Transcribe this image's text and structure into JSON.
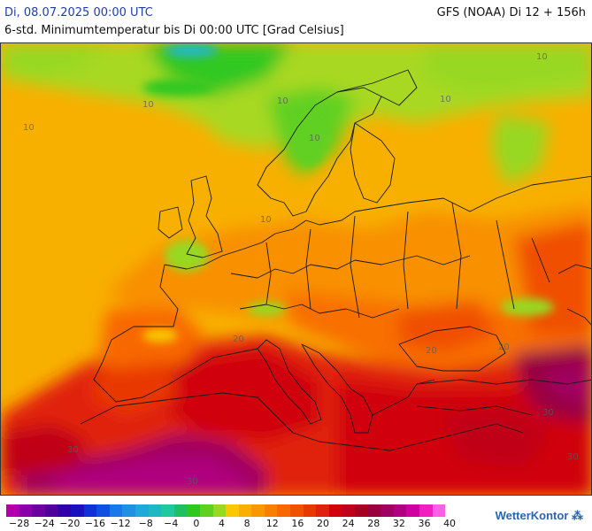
{
  "header": {
    "date_title": "Di, 08.07.2025 00:00 UTC",
    "subtitle": "6-std. Minimumtemperatur bis Di 00:00 UTC [Grad Celsius]",
    "model_run": "GFS (NOAA) Di 12 + 156h"
  },
  "legend": {
    "colors": [
      "#b000b0",
      "#8a00a8",
      "#6a00a0",
      "#50009a",
      "#3000a8",
      "#1a10c0",
      "#1030d8",
      "#1050e0",
      "#1878e8",
      "#2090e0",
      "#20a8d8",
      "#20b8c0",
      "#20c8a0",
      "#20c060",
      "#30c820",
      "#60d020",
      "#98d820",
      "#f8c800",
      "#f8b000",
      "#f89800",
      "#f88000",
      "#f86800",
      "#f05000",
      "#e83800",
      "#e02010",
      "#d00010",
      "#c00018",
      "#a80020",
      "#980040",
      "#a00060",
      "#b00080",
      "#d000a0",
      "#f020c0",
      "#f860e8"
    ],
    "tick_labels": [
      "−28",
      "−24",
      "−20",
      "−16",
      "−12",
      "−8",
      "−4",
      "0",
      "4",
      "8",
      "12",
      "16",
      "20",
      "24",
      "28",
      "32",
      "36",
      "40"
    ]
  },
  "map": {
    "contour_labels": [
      "10",
      "10",
      "10",
      "10",
      "10",
      "10",
      "10",
      "20",
      "20",
      "20",
      "30",
      "30",
      "30",
      "30"
    ]
  },
  "brand": {
    "name": "WetterKontor"
  }
}
